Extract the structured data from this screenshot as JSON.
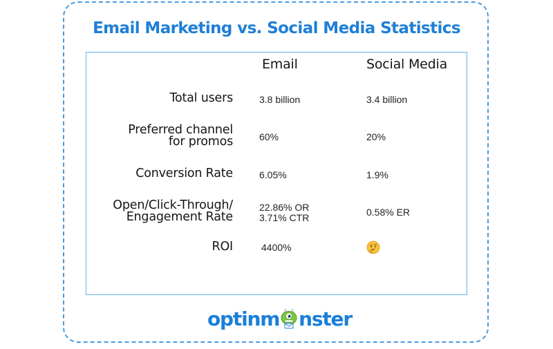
{
  "title": "Email Marketing vs. Social Media Statistics",
  "columns": {
    "email": "Email",
    "social": "Social Media"
  },
  "rows": [
    {
      "label_lines": [
        "Total users"
      ],
      "email_lines": [
        "3.8 billion"
      ],
      "social_lines": [
        "3.4 billion"
      ]
    },
    {
      "label_lines": [
        "Preferred channel",
        "for promos"
      ],
      "email_lines": [
        "60%"
      ],
      "social_lines": [
        "20%"
      ]
    },
    {
      "label_lines": [
        "Conversion Rate"
      ],
      "email_lines": [
        "6.05%"
      ],
      "social_lines": [
        "1.9%"
      ]
    },
    {
      "label_lines": [
        "Open/Click-Through/",
        "Engagement Rate"
      ],
      "email_lines": [
        "22.86% OR",
        "3.71% CTR"
      ],
      "social_lines": [
        "0.58% ER"
      ]
    },
    {
      "label_lines": [
        "ROI"
      ],
      "email_lines": [
        "4400%"
      ],
      "social_lines": [],
      "social_icon": "thinking-face-emoji"
    }
  ],
  "logo": {
    "text_before": "optinm",
    "text_after": "nster",
    "icon": "monster-mascot-icon"
  },
  "colors": {
    "title": "#1f7fd6",
    "border": "#4a9be0",
    "table_border": "#63b3e6",
    "emoji": "#f7c33a"
  }
}
